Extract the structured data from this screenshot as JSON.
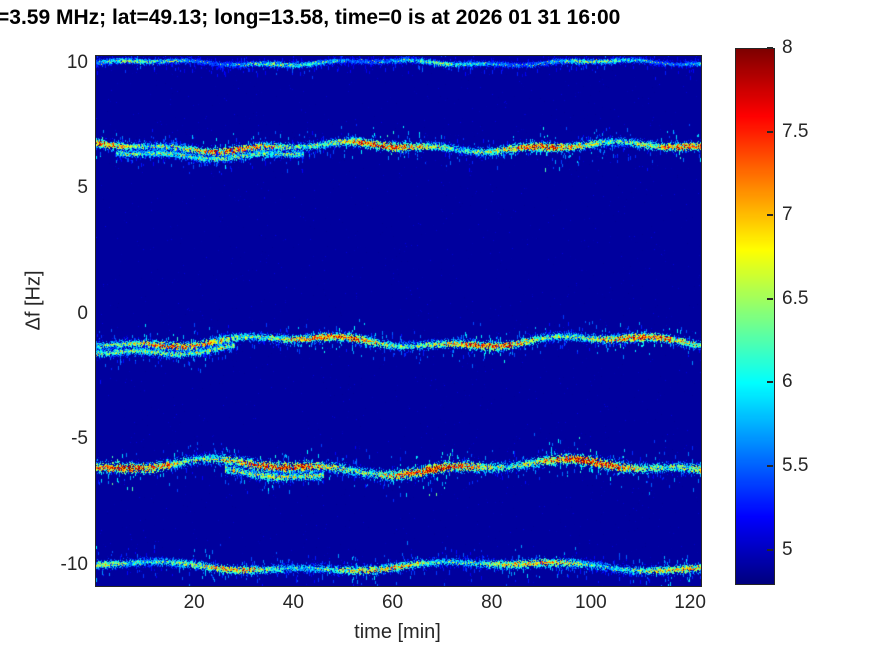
{
  "chart_data": {
    "type": "heatmap",
    "title": "=3.59 MHz;  lat=49.13; long=13.58, time=0 is at 2026 01 31 16:00",
    "xlabel": "time [min]",
    "ylabel": "Δf [Hz]",
    "xlim": [
      0,
      122
    ],
    "ylim": [
      -10.8,
      10.3
    ],
    "x_ticks": [
      20,
      40,
      60,
      80,
      100,
      120
    ],
    "y_ticks": [
      10,
      5,
      0,
      -5,
      -10
    ],
    "grid": false,
    "colormap": "jet",
    "background_color": "#000099",
    "axis_color": "#262626",
    "colorbar": {
      "min": 4.8,
      "max": 8,
      "ticks": [
        8,
        7.5,
        7,
        6.5,
        6,
        5.5,
        5
      ],
      "position": "right"
    },
    "spectral_lines": [
      {
        "label": "doppler-trace-plus-10Hz",
        "center_hz": 10.05,
        "amplitude_hz": 0.08,
        "width_hz": 0.06,
        "strength": 0.42
      },
      {
        "label": "doppler-trace-plus-6.7Hz",
        "center_hz": 6.7,
        "amplitude_hz": 0.14,
        "width_hz": 0.09,
        "strength": 0.9,
        "echo": {
          "offset_hz": -0.28,
          "x_range": [
            4,
            42
          ],
          "strength": 0.45
        }
      },
      {
        "label": "doppler-trace-minus-1.1Hz",
        "center_hz": -1.05,
        "amplitude_hz": 0.18,
        "width_hz": 0.09,
        "strength": 0.9,
        "echo": {
          "offset_hz": -0.3,
          "x_range": [
            0,
            28
          ],
          "strength": 0.5
        }
      },
      {
        "label": "doppler-trace-minus-6.1Hz",
        "center_hz": -6.05,
        "amplitude_hz": 0.22,
        "width_hz": 0.11,
        "strength": 1.0,
        "echo": {
          "offset_hz": -0.38,
          "x_range": [
            26,
            46
          ],
          "strength": 0.55
        }
      },
      {
        "label": "doppler-trace-minus-10Hz",
        "center_hz": -10.0,
        "amplitude_hz": 0.15,
        "width_hz": 0.09,
        "strength": 0.72
      }
    ]
  }
}
